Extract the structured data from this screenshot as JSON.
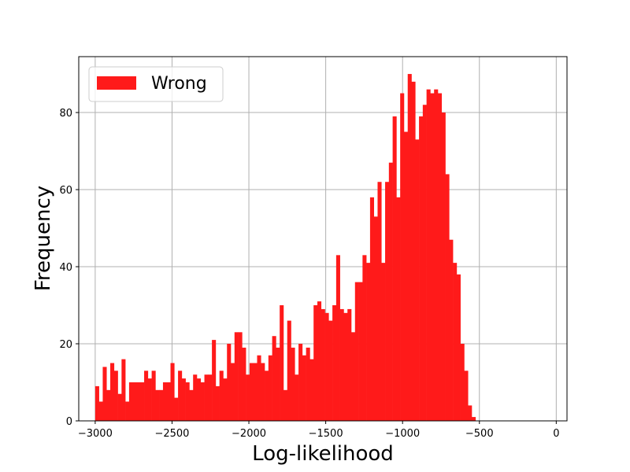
{
  "chart_data": {
    "type": "bar",
    "title": "",
    "xlabel": "Log-likelihood",
    "ylabel": "Frequency",
    "xlim": [
      -3107,
      70
    ],
    "ylim": [
      0,
      94.5
    ],
    "grid": true,
    "legend_position": "top-left",
    "x_ticks": [
      -3000,
      -2500,
      -2000,
      -1500,
      -1000,
      -500,
      0
    ],
    "x_tick_labels": [
      "−3000",
      "−2500",
      "−2000",
      "−1500",
      "−1000",
      "−500",
      "0"
    ],
    "y_ticks": [
      0,
      20,
      40,
      60,
      80
    ],
    "y_tick_labels": [
      "0",
      "20",
      "40",
      "60",
      "80"
    ],
    "bin_start": -3000,
    "bin_width": 24.5,
    "series": [
      {
        "name": "Wrong",
        "color": "#ff1a1a",
        "values": [
          9,
          5,
          14,
          8,
          15,
          13,
          7,
          16,
          5,
          10,
          10,
          10,
          10,
          13,
          11,
          13,
          8,
          8,
          10,
          10,
          15,
          6,
          13,
          11,
          10,
          8,
          12,
          11,
          10,
          12,
          12,
          21,
          9,
          13,
          11,
          20,
          15,
          23,
          23,
          19,
          12,
          15,
          15,
          17,
          15,
          13,
          17,
          22,
          19,
          30,
          8,
          26,
          19,
          12,
          20,
          17,
          19,
          16,
          30,
          31,
          29,
          28,
          26,
          30,
          43,
          29,
          28,
          29,
          23,
          36,
          36,
          43,
          41,
          58,
          53,
          62,
          41,
          62,
          67,
          79,
          58,
          85,
          75,
          90,
          88,
          73,
          79,
          82,
          86,
          85,
          86,
          85,
          80,
          64,
          47,
          41,
          38,
          20,
          13,
          4,
          1
        ]
      }
    ]
  }
}
